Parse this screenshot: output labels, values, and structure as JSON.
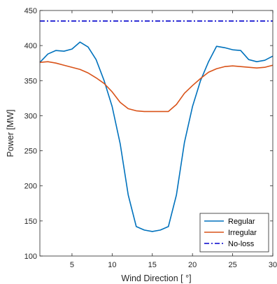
{
  "chart_data": {
    "type": "line",
    "title": "",
    "xlabel": "Wind Direction [ °]",
    "ylabel": "Power [MW]",
    "xlim": [
      1,
      30
    ],
    "ylim": [
      100,
      450
    ],
    "xticks": [
      5,
      10,
      15,
      20,
      25,
      30
    ],
    "yticks": [
      100,
      150,
      200,
      250,
      300,
      350,
      400,
      450
    ],
    "grid": false,
    "legend_position": "bottom-right",
    "x": [
      1,
      2,
      3,
      4,
      5,
      6,
      7,
      8,
      9,
      10,
      11,
      12,
      13,
      14,
      15,
      16,
      17,
      18,
      19,
      20,
      21,
      22,
      23,
      24,
      25,
      26,
      27,
      28,
      29,
      30
    ],
    "series": [
      {
        "name": "Regular",
        "color": "#0072bd",
        "style": "solid",
        "values": [
          376,
          388,
          393,
          392,
          395,
          405,
          398,
          380,
          350,
          313,
          260,
          187,
          142,
          137,
          135,
          137,
          142,
          187,
          262,
          313,
          350,
          377,
          399,
          397,
          394,
          393,
          380,
          377,
          379,
          385
        ]
      },
      {
        "name": "Irregular",
        "color": "#d95319",
        "style": "solid",
        "values": [
          376,
          377,
          375,
          372,
          369,
          366,
          361,
          354,
          346,
          334,
          319,
          310,
          307,
          306,
          306,
          306,
          306,
          316,
          332,
          343,
          353,
          362,
          367,
          370,
          371,
          370,
          369,
          368,
          369,
          372
        ]
      },
      {
        "name": "No-loss",
        "color": "#0000cc",
        "style": "dashdot",
        "values": [
          435,
          435,
          435,
          435,
          435,
          435,
          435,
          435,
          435,
          435,
          435,
          435,
          435,
          435,
          435,
          435,
          435,
          435,
          435,
          435,
          435,
          435,
          435,
          435,
          435,
          435,
          435,
          435,
          435,
          435
        ]
      }
    ]
  }
}
